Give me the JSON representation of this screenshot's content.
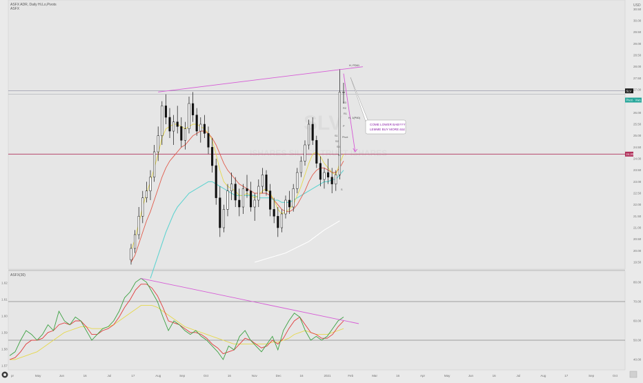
{
  "header": {
    "line1": "ASFX ADR, Daily Hi.Lo,Pivots",
    "line2": "ASFX"
  },
  "price_axis": {
    "unit_label": "USD",
    "ticks": [
      "30.50",
      "30.00",
      "29.50",
      "29.00",
      "28.50",
      "28.00",
      "27.50",
      "27.00",
      "26.50",
      "26.00",
      "25.50",
      "25.00",
      "24.50",
      "24.00",
      "23.50",
      "23.00",
      "22.50",
      "22.00",
      "21.50",
      "21.00",
      "20.50",
      "20.00",
      "19.50"
    ],
    "badges": [
      {
        "text": "SLV",
        "bg": "#1e1e1e",
        "fg": "#ffffff"
      },
      {
        "text": "Pivot · Vwo.85",
        "bg": "#26a69a",
        "fg": "#ffffff"
      },
      {
        "text": "24.20",
        "bg": "#b0305a",
        "fg": "#ffffff"
      }
    ]
  },
  "osc_axis": {
    "ticks": [
      "80.00",
      "70.00",
      "60.00",
      "50.00",
      "40.00"
    ],
    "left_ticks": [
      "1.62",
      "1.61",
      "1.60",
      "1.59",
      "1.58",
      "1.57"
    ]
  },
  "osc_header": {
    "label": "ASFX(30)"
  },
  "time_axis": {
    "labels": [
      "pr",
      "May",
      "Jun",
      "16",
      "Jul",
      "17",
      "Aug",
      "Sep",
      "Oct",
      "16",
      "Nov",
      "Dec",
      "16",
      "2021",
      "Feb",
      "Mar",
      "16",
      "Apr",
      "May",
      "Jun",
      "16",
      "Jul",
      "Aug",
      "17",
      "Sep",
      "Oct"
    ]
  },
  "watermark": {
    "line1": "SLV",
    "line2": "ISHARES SILVER TRUST ISHARES"
  },
  "annotations": {
    "callout_line1": "COME LOWER BABYYY",
    "callout_line2": "LEMME BUY MORE £££",
    "peak_label": "H, PD61",
    "mid_label": "H, 1(P60)",
    "pivot_letters": [
      "R3",
      "R2",
      "R1",
      "P",
      "S1",
      "S2",
      "S3",
      "Pivot",
      "R",
      "S"
    ]
  },
  "colors": {
    "trendline": "#d65ad6",
    "hline": "#b0305a",
    "sma_fast": "#e6d84a",
    "sma_mid": "#e05a4a",
    "sma_slow": "#5fd3d0",
    "sma_long": "#ffffff",
    "osc_green": "#3aa040",
    "osc_red": "#e03a3a",
    "osc_yellow": "#e6d84a",
    "candle": "#111111",
    "callout_text": "#8a1fa8"
  },
  "chart_data": {
    "type": "candlestick",
    "symbol": "SLV",
    "ylim": [
      19.2,
      30.9
    ],
    "candles": [
      [
        19.6,
        20.3,
        19.4,
        20.1
      ],
      [
        20.1,
        20.9,
        19.9,
        20.7
      ],
      [
        20.7,
        21.9,
        20.5,
        21.5
      ],
      [
        21.5,
        22.6,
        21.2,
        22.3
      ],
      [
        22.3,
        23.0,
        22.1,
        22.6
      ],
      [
        22.6,
        23.5,
        22.2,
        23.2
      ],
      [
        23.2,
        24.6,
        23.0,
        24.3
      ],
      [
        24.3,
        25.4,
        23.9,
        25.0
      ],
      [
        25.0,
        26.5,
        24.6,
        26.3
      ],
      [
        26.3,
        26.8,
        25.5,
        25.8
      ],
      [
        25.8,
        26.2,
        24.9,
        25.2
      ],
      [
        25.2,
        25.9,
        24.6,
        25.6
      ],
      [
        25.6,
        26.3,
        25.1,
        25.4
      ],
      [
        25.4,
        25.8,
        24.5,
        24.8
      ],
      [
        24.8,
        25.6,
        24.4,
        25.3
      ],
      [
        25.3,
        26.7,
        25.1,
        26.4
      ],
      [
        26.4,
        26.9,
        25.6,
        25.9
      ],
      [
        25.9,
        26.2,
        25.0,
        25.2
      ],
      [
        25.2,
        25.8,
        24.7,
        25.5
      ],
      [
        25.5,
        25.9,
        24.9,
        25.1
      ],
      [
        25.1,
        25.4,
        24.2,
        24.5
      ],
      [
        24.5,
        24.9,
        23.4,
        23.7
      ],
      [
        23.7,
        24.0,
        22.0,
        22.3
      ],
      [
        22.3,
        22.8,
        20.6,
        21.0
      ],
      [
        21.0,
        22.0,
        20.8,
        21.8
      ],
      [
        21.8,
        22.9,
        21.5,
        22.6
      ],
      [
        22.6,
        23.4,
        22.2,
        22.9
      ],
      [
        22.9,
        23.2,
        21.9,
        22.2
      ],
      [
        22.2,
        22.7,
        21.5,
        21.9
      ],
      [
        21.9,
        22.9,
        21.6,
        22.7
      ],
      [
        22.7,
        23.3,
        22.3,
        22.6
      ],
      [
        22.6,
        23.0,
        21.7,
        21.9
      ],
      [
        21.9,
        22.5,
        21.3,
        22.2
      ],
      [
        22.2,
        23.1,
        21.9,
        22.8
      ],
      [
        22.8,
        23.6,
        22.5,
        23.3
      ],
      [
        23.3,
        23.5,
        22.4,
        22.6
      ],
      [
        22.6,
        22.9,
        21.5,
        21.8
      ],
      [
        21.8,
        22.3,
        21.2,
        21.5
      ],
      [
        21.5,
        21.9,
        20.6,
        21.0
      ],
      [
        21.0,
        21.8,
        20.8,
        21.6
      ],
      [
        21.6,
        22.4,
        21.4,
        22.2
      ],
      [
        22.2,
        22.6,
        21.6,
        21.9
      ],
      [
        21.9,
        22.9,
        21.7,
        22.7
      ],
      [
        22.7,
        23.6,
        22.5,
        23.4
      ],
      [
        23.4,
        24.1,
        23.2,
        23.9
      ],
      [
        23.9,
        24.8,
        23.7,
        24.6
      ],
      [
        24.6,
        25.7,
        24.4,
        25.5
      ],
      [
        25.5,
        25.8,
        24.6,
        24.8
      ],
      [
        24.8,
        25.0,
        23.6,
        23.8
      ],
      [
        23.8,
        24.1,
        22.8,
        23.1
      ],
      [
        23.1,
        23.6,
        22.7,
        23.4
      ],
      [
        23.4,
        24.0,
        22.9,
        23.2
      ],
      [
        23.2,
        23.6,
        22.5,
        22.9
      ],
      [
        22.9,
        23.5,
        22.6,
        23.3
      ],
      [
        23.3,
        27.9,
        23.1,
        26.9
      ],
      [
        26.9,
        27.3,
        26.4,
        26.9
      ]
    ],
    "sma_fast": [
      20.0,
      20.5,
      21.2,
      21.9,
      22.5,
      23.0,
      23.6,
      24.2,
      24.9,
      25.3,
      25.4,
      25.5,
      25.5,
      25.4,
      25.3,
      25.4,
      25.5,
      25.5,
      25.4,
      25.3,
      25.1,
      24.8,
      24.2,
      23.5,
      23.0,
      22.8,
      22.7,
      22.6,
      22.4,
      22.4,
      22.5,
      22.4,
      22.3,
      22.4,
      22.6,
      22.7,
      22.5,
      22.2,
      21.8,
      21.6,
      21.7,
      21.8,
      22.0,
      22.4,
      22.8,
      23.3,
      23.8,
      24.2,
      24.3,
      24.1,
      23.8,
      23.6,
      23.4,
      23.3,
      23.8,
      24.2
    ],
    "sma_mid": [
      19.5,
      19.8,
      20.3,
      20.8,
      21.3,
      21.7,
      22.2,
      22.7,
      23.2,
      23.6,
      23.9,
      24.1,
      24.3,
      24.5,
      24.6,
      24.8,
      25.0,
      25.1,
      25.2,
      25.2,
      25.1,
      24.9,
      24.6,
      24.2,
      23.8,
      23.5,
      23.3,
      23.1,
      22.9,
      22.8,
      22.7,
      22.6,
      22.5,
      22.5,
      22.5,
      22.5,
      22.4,
      22.2,
      22.0,
      21.8,
      21.7,
      21.7,
      21.8,
      22.0,
      22.3,
      22.6,
      23.0,
      23.3,
      23.5,
      23.6,
      23.6,
      23.5,
      23.4,
      23.4,
      23.6,
      23.9
    ],
    "sma_slow": [
      null,
      null,
      null,
      null,
      null,
      18.8,
      19.3,
      19.8,
      20.3,
      20.8,
      21.2,
      21.6,
      21.9,
      22.1,
      22.3,
      22.5,
      22.6,
      22.7,
      22.8,
      22.9,
      23.0,
      23.0,
      22.9,
      22.8,
      22.7,
      22.6,
      22.5,
      22.4,
      22.4,
      22.4,
      22.4,
      22.4,
      22.4,
      22.3,
      22.3,
      22.3,
      22.3,
      22.2,
      22.2,
      22.1,
      22.1,
      22.1,
      22.2,
      22.3,
      22.4,
      22.5,
      22.6,
      22.7,
      22.8,
      22.9,
      23.0,
      23.0,
      23.1,
      23.1,
      23.3,
      23.5
    ],
    "sma_long_points": [
      [
        32,
        19.5
      ],
      [
        40,
        19.9
      ],
      [
        46,
        20.4
      ],
      [
        50,
        20.9
      ],
      [
        54,
        21.3
      ]
    ],
    "resistance_line": {
      "x1": 7,
      "y1": 26.9,
      "x2": 60,
      "y2": 28.0
    },
    "support_hline": 24.2,
    "price_line": 26.95,
    "price_line2": 26.8,
    "projection": {
      "x1": 55,
      "y1": 27.7,
      "x2": 58,
      "y2": 24.3
    },
    "oscillator": {
      "ylim": [
        35,
        85
      ],
      "ref_lines": [
        70,
        50
      ],
      "green": [
        42,
        44,
        50,
        55,
        53,
        50,
        53,
        58,
        55,
        65,
        60,
        58,
        62,
        60,
        55,
        50,
        53,
        56,
        57,
        60,
        65,
        72,
        75,
        80,
        82,
        80,
        75,
        70,
        62,
        55,
        60,
        58,
        55,
        53,
        55,
        52,
        50,
        47,
        44,
        40,
        47,
        45,
        52,
        55,
        50,
        47,
        44,
        48,
        52,
        45,
        55,
        60,
        64,
        62,
        55,
        50,
        52,
        50,
        52,
        56,
        60,
        62
      ],
      "red": [
        40,
        41,
        44,
        48,
        50,
        50,
        51,
        54,
        55,
        58,
        59,
        58,
        60,
        60,
        57,
        53,
        53,
        55,
        56,
        58,
        62,
        67,
        71,
        76,
        79,
        79,
        77,
        73,
        67,
        60,
        59,
        58,
        56,
        54,
        54,
        53,
        51,
        48,
        46,
        43,
        44,
        45,
        48,
        51,
        50,
        48,
        46,
        47,
        50,
        48,
        51,
        56,
        60,
        62,
        58,
        54,
        53,
        51,
        51,
        53,
        57,
        60
      ],
      "yellow": [
        40,
        40,
        41,
        42,
        43,
        44,
        46,
        48,
        50,
        52,
        54,
        55,
        56,
        57,
        57,
        56,
        56,
        56,
        57,
        58,
        60,
        62,
        64,
        66,
        68,
        68,
        68,
        67,
        65,
        63,
        61,
        59,
        57,
        56,
        55,
        54,
        53,
        52,
        51,
        50,
        49,
        48,
        48,
        48,
        48,
        48,
        48,
        48,
        49,
        49,
        50,
        51,
        53,
        54,
        55,
        54,
        53,
        53,
        53,
        54,
        55,
        56
      ],
      "trendline": {
        "x1": 24,
        "y1": 82,
        "x2": 62,
        "y2": 60
      }
    }
  }
}
